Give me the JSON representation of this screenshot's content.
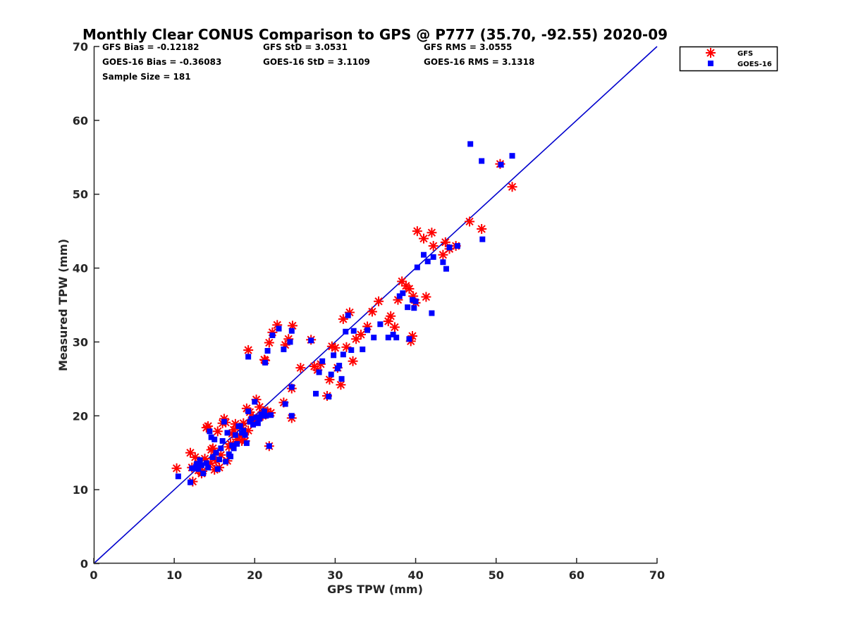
{
  "chart_data": {
    "type": "scatter",
    "title": "Monthly Clear CONUS Comparison to GPS @ P777 (35.70, -92.55) 2020-09",
    "xlabel": "GPS TPW (mm)",
    "ylabel": "Measured TPW (mm)",
    "xlim": [
      0,
      70
    ],
    "ylim": [
      0,
      70
    ],
    "xticks": [
      "0",
      "10",
      "20",
      "30",
      "40",
      "50",
      "60",
      "70"
    ],
    "yticks": [
      "0",
      "10",
      "20",
      "30",
      "40",
      "50",
      "60",
      "70"
    ],
    "grid": false,
    "legend_position": "top-right-outside",
    "colors": {
      "gfs": "#ff0000",
      "goes": "#0000ff",
      "line": "#0000cd"
    },
    "stats": [
      "GFS Bias = -0.12182",
      "GFS StD = 3.0531",
      "GFS RMS = 3.0555",
      "GOES-16 Bias = -0.36083",
      "GOES-16 StD = 3.1109",
      "GOES-16 RMS = 3.1318",
      "Sample Size = 181"
    ],
    "reference_line": {
      "x": [
        0,
        70
      ],
      "y": [
        0,
        70
      ]
    },
    "series": [
      {
        "name": "GFS",
        "marker": "asterisk",
        "x": [
          10.3,
          12.0,
          12.3,
          12.6,
          13.0,
          13.4,
          13.8,
          14.2,
          14.6,
          15.0,
          15.4,
          15.8,
          16.2,
          16.6,
          17.0,
          17.4,
          17.8,
          18.2,
          18.6,
          19.0,
          19.4,
          19.8,
          20.2,
          20.6,
          21.0,
          21.4,
          14.0,
          14.5,
          15.2,
          16.0,
          16.8,
          17.6,
          18.4,
          19.2,
          20.0,
          20.8,
          21.6,
          13.5,
          15.6,
          17.2,
          18.8,
          19.6,
          21.2,
          22.0,
          16.4,
          12.2,
          13.0,
          14.8,
          19.2,
          21.3,
          21.8,
          22.2,
          22.8,
          23.8,
          24.2,
          24.7,
          21.8,
          23.6,
          24.6,
          24.6,
          25.7,
          27.0,
          27.4,
          27.8,
          28.2,
          29.0,
          29.3,
          29.6,
          30.0,
          30.3,
          30.7,
          31.0,
          31.4,
          31.8,
          32.2,
          32.6,
          33.2,
          34.0,
          34.6,
          35.4,
          36.6,
          36.9,
          37.4,
          37.8,
          38.3,
          38.8,
          39.2,
          39.4,
          39.6,
          39.7,
          40.0,
          40.2,
          41.0,
          41.3,
          42.0,
          42.2,
          43.4,
          43.7,
          44.2,
          45.0,
          46.7,
          48.2,
          50.5,
          52.0
        ],
        "y": [
          12.9,
          15.0,
          11.1,
          14.4,
          12.6,
          12.2,
          14.2,
          18.6,
          15.4,
          12.7,
          17.9,
          14.7,
          19.6,
          13.9,
          16.2,
          18.1,
          16.8,
          17.3,
          19.0,
          21.0,
          20.5,
          19.8,
          22.2,
          21.2,
          20.0,
          20.5,
          18.4,
          13.6,
          13.9,
          19.0,
          15.8,
          18.9,
          16.6,
          18.0,
          19.3,
          20.1,
          20.6,
          12.5,
          13.0,
          17.6,
          16.6,
          19.3,
          27.6,
          20.4,
          19.1,
          13.0,
          13.6,
          15.6,
          28.9,
          27.5,
          29.9,
          31.3,
          32.3,
          29.6,
          30.4,
          32.2,
          15.9,
          21.8,
          19.7,
          23.7,
          26.5,
          30.3,
          26.7,
          26.2,
          27.0,
          22.7,
          24.9,
          29.4,
          29.2,
          26.5,
          24.2,
          33.1,
          29.3,
          34.0,
          27.4,
          30.4,
          31.0,
          32.1,
          34.1,
          35.5,
          32.8,
          33.5,
          32.0,
          35.7,
          38.2,
          37.6,
          37.2,
          30.1,
          30.8,
          36.2,
          35.3,
          45.0,
          44.0,
          36.1,
          44.8,
          43.0,
          41.8,
          43.5,
          42.6,
          43.0,
          46.3,
          45.3,
          54.1,
          51.0
        ]
      },
      {
        "name": "GOES-16",
        "marker": "square",
        "x": [
          10.5,
          12.0,
          12.2,
          12.5,
          12.8,
          13.2,
          13.6,
          14.0,
          14.4,
          14.8,
          15.2,
          15.6,
          16.0,
          16.4,
          16.8,
          17.2,
          17.6,
          18.0,
          18.4,
          18.8,
          19.2,
          19.6,
          20.0,
          20.4,
          20.8,
          21.2,
          12.7,
          13.4,
          14.2,
          15.0,
          15.8,
          16.6,
          17.4,
          18.2,
          19.0,
          19.8,
          20.6,
          21.4,
          14.6,
          16.2,
          17.8,
          19.4,
          21.0,
          22.0,
          13.0,
          15.4,
          17.0,
          18.6,
          20.2,
          19.2,
          21.3,
          21.6,
          22.2,
          23.0,
          23.6,
          24.4,
          24.6,
          21.8,
          23.8,
          24.6,
          24.6,
          27.0,
          27.6,
          28.0,
          28.4,
          29.2,
          29.5,
          29.8,
          30.3,
          30.5,
          30.8,
          31.0,
          31.3,
          31.6,
          32.0,
          32.3,
          33.4,
          34.0,
          34.8,
          35.6,
          36.6,
          37.2,
          37.6,
          38.0,
          38.4,
          39.0,
          39.2,
          39.6,
          39.8,
          40.0,
          40.2,
          41.0,
          41.5,
          42.0,
          42.2,
          43.4,
          43.8,
          44.2,
          45.2,
          46.8,
          48.2,
          48.3,
          50.6,
          52.0
        ],
        "y": [
          11.8,
          11.0,
          12.9,
          12.9,
          13.5,
          14.0,
          12.2,
          13.6,
          17.9,
          14.4,
          15.0,
          14.1,
          16.6,
          13.8,
          14.8,
          16.0,
          17.4,
          18.6,
          17.7,
          17.4,
          20.6,
          19.6,
          21.9,
          19.0,
          20.2,
          20.6,
          13.1,
          13.3,
          13.0,
          16.8,
          15.6,
          17.7,
          15.6,
          18.6,
          16.3,
          18.8,
          19.6,
          20.0,
          17.1,
          19.2,
          16.2,
          19.2,
          20.0,
          20.1,
          12.8,
          12.8,
          14.5,
          18.0,
          19.8,
          28.0,
          27.2,
          28.8,
          30.9,
          31.8,
          29.0,
          30.0,
          31.5,
          15.9,
          21.6,
          20.0,
          23.9,
          30.2,
          23.0,
          25.9,
          27.4,
          22.6,
          25.6,
          28.2,
          26.4,
          26.8,
          25.0,
          28.3,
          31.4,
          33.6,
          28.9,
          31.5,
          29.0,
          31.6,
          30.6,
          32.4,
          30.6,
          31.0,
          30.6,
          36.2,
          36.6,
          34.7,
          30.4,
          35.7,
          34.6,
          35.5,
          40.1,
          41.8,
          40.9,
          33.9,
          41.5,
          40.8,
          39.9,
          42.8,
          43.0,
          56.8,
          54.5,
          43.9,
          54.0,
          55.2
        ]
      }
    ]
  }
}
